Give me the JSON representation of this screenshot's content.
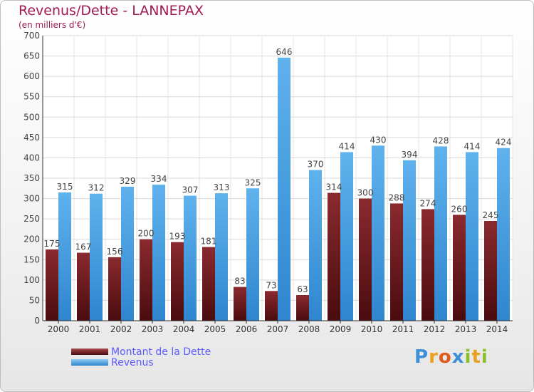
{
  "title": "Revenus/Dette - LANNEPAX",
  "subtitle": "(en milliers d'€)",
  "colors": {
    "dette": "#7a1d20",
    "revenus": "#5aaee9"
  },
  "legend": [
    {
      "label": "Montant de la Dette",
      "color": "#7a1d20"
    },
    {
      "label": "Revenus",
      "color": "#5aaee9"
    }
  ],
  "logo": {
    "letters": [
      "P",
      "r",
      "o",
      "x",
      "i",
      "t",
      "i"
    ]
  },
  "chart_data": {
    "type": "bar",
    "categories": [
      "2000",
      "2001",
      "2002",
      "2003",
      "2004",
      "2005",
      "2006",
      "2007",
      "2008",
      "2009",
      "2010",
      "2011",
      "2012",
      "2013",
      "2014"
    ],
    "series": [
      {
        "name": "Montant de la Dette",
        "values": [
          175,
          167,
          156,
          200,
          193,
          181,
          83,
          73,
          63,
          314,
          300,
          288,
          274,
          260,
          245
        ]
      },
      {
        "name": "Revenus",
        "values": [
          315,
          312,
          329,
          334,
          307,
          313,
          325,
          646,
          370,
          414,
          430,
          394,
          428,
          414,
          424
        ]
      }
    ],
    "yticks": [
      0,
      50,
      100,
      150,
      200,
      250,
      300,
      350,
      400,
      450,
      500,
      550,
      600,
      650,
      700
    ],
    "ylim": [
      0,
      700
    ],
    "grid": true,
    "legend_position": "bottom-left"
  }
}
